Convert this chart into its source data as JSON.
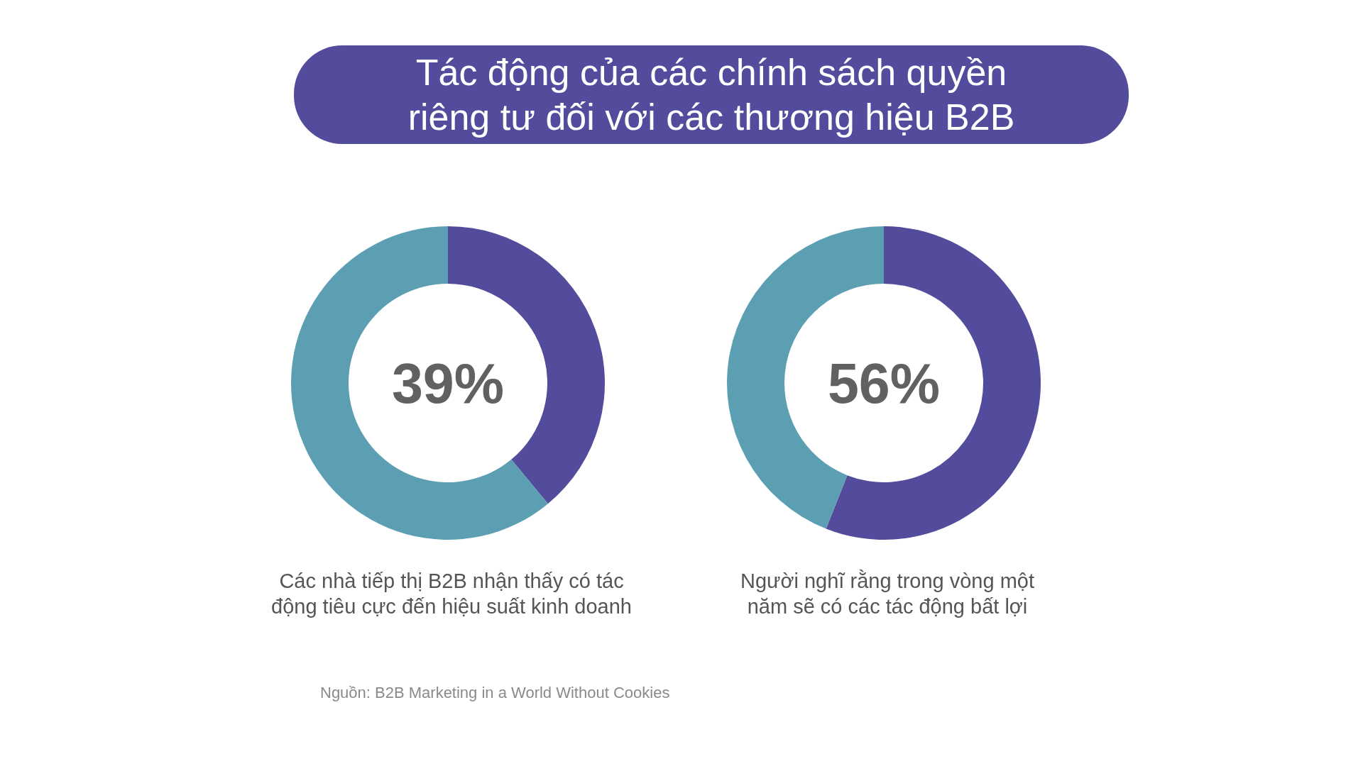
{
  "chart_data": [
    {
      "type": "other",
      "title": "Tác động của các chính sách quyền\nriêng tư đối với các thương hiệu B2B"
    },
    {
      "type": "donut",
      "title": "Các nhà tiếp thị B2B nhận thấy có tác\nđộng tiêu cực đến hiệu suất kinh doanh",
      "categories": [
        null,
        null
      ],
      "values": [
        39,
        61
      ],
      "colors": [
        "#534b9b",
        "#5c9fb3"
      ],
      "value_labels": [
        "39%",
        null
      ]
    },
    {
      "type": "donut",
      "title": "Người nghĩ rằng trong vòng một\nnăm sẽ có các tác động bất lợi",
      "categories": [
        null,
        null
      ],
      "values": [
        56,
        44
      ],
      "colors": [
        "#534b9b",
        "#5c9fb3"
      ],
      "value_labels": [
        "56%",
        null
      ]
    },
    {
      "type": "other",
      "annotations": [
        "Nguồn: B2B Marketing in a World Without Cookies"
      ]
    }
  ]
}
